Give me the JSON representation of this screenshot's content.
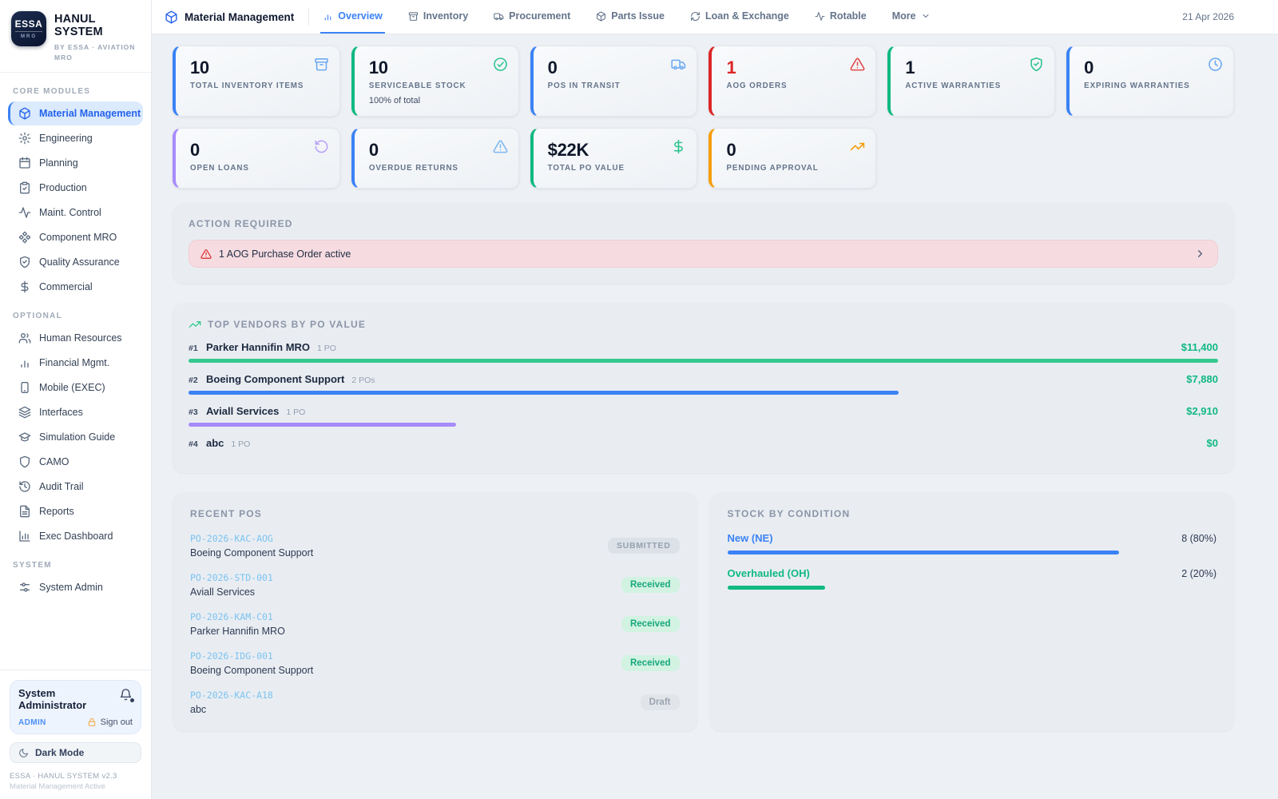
{
  "brand": {
    "logo_line1": "ESSA",
    "logo_line2": "MRO",
    "title": "HANUL SYSTEM",
    "subtitle": "BY ESSA · AVIATION MRO"
  },
  "sidebar": {
    "core_label": "CORE MODULES",
    "core_items": [
      {
        "label": "Material Management",
        "icon": "package",
        "state": "active"
      },
      {
        "label": "Engineering",
        "icon": "gear",
        "state": ""
      },
      {
        "label": "Planning",
        "icon": "calendar",
        "state": ""
      },
      {
        "label": "Production",
        "icon": "clipboard",
        "state": ""
      },
      {
        "label": "Maint. Control",
        "icon": "activity",
        "state": ""
      },
      {
        "label": "Component MRO",
        "icon": "component",
        "state": ""
      },
      {
        "label": "Quality Assurance",
        "icon": "shield-check",
        "state": ""
      },
      {
        "label": "Commercial",
        "icon": "dollar",
        "state": ""
      }
    ],
    "optional_label": "OPTIONAL",
    "optional_items": [
      {
        "label": "Human Resources",
        "icon": "users",
        "state": ""
      },
      {
        "label": "Financial Mgmt.",
        "icon": "chart-bars",
        "state": ""
      },
      {
        "label": "Mobile (EXEC)",
        "icon": "smartphone",
        "state": ""
      },
      {
        "label": "Interfaces",
        "icon": "layers",
        "state": ""
      },
      {
        "label": "Simulation Guide",
        "icon": "graduation-cap",
        "state": ""
      },
      {
        "label": "CAMO",
        "icon": "shield",
        "state": ""
      },
      {
        "label": "Audit Trail",
        "icon": "history",
        "state": ""
      },
      {
        "label": "Reports",
        "icon": "file-text",
        "state": ""
      },
      {
        "label": "Exec Dashboard",
        "icon": "chart-column",
        "state": ""
      }
    ],
    "system_label": "SYSTEM",
    "system_items": [
      {
        "label": "System Admin",
        "icon": "sliders",
        "state": ""
      }
    ],
    "user": {
      "name": "System Administrator",
      "role": "ADMIN",
      "signout_label": "Sign out",
      "bell_icon": "bell",
      "lock_icon": "lock"
    },
    "dark_mode": {
      "label": "Dark Mode",
      "icon": "moon"
    },
    "footer_line1": "ESSA · HANUL SYSTEM v2.3",
    "footer_line2": "Material Management Active"
  },
  "header": {
    "app_icon": "package",
    "app_name": "Material Management",
    "date": "21 Apr 2026",
    "tabs": [
      {
        "label": "Overview",
        "icon": "chart-bars",
        "trailing_icon": "",
        "state": "active"
      },
      {
        "label": "Inventory",
        "icon": "archive",
        "trailing_icon": "",
        "state": ""
      },
      {
        "label": "Procurement",
        "icon": "truck",
        "trailing_icon": "",
        "state": ""
      },
      {
        "label": "Parts Issue",
        "icon": "package",
        "trailing_icon": "",
        "state": ""
      },
      {
        "label": "Loan & Exchange",
        "icon": "refresh-cw",
        "trailing_icon": "",
        "state": ""
      },
      {
        "label": "Rotable",
        "icon": "activity",
        "trailing_icon": "",
        "state": ""
      },
      {
        "label": "More",
        "icon": "",
        "trailing_icon": "chevron-down",
        "state": ""
      }
    ]
  },
  "stats": [
    {
      "value": "10",
      "label": "TOTAL INVENTORY ITEMS",
      "sub": "",
      "accent": "#3b82f6",
      "value_color": "#0f172a",
      "icon": "archive",
      "icon_color": "#6caaf2"
    },
    {
      "value": "10",
      "label": "SERVICEABLE STOCK",
      "sub": "100% of total",
      "accent": "#10b981",
      "value_color": "#0f172a",
      "icon": "check-circle",
      "icon_color": "#2fc48e"
    },
    {
      "value": "0",
      "label": "POS IN TRANSIT",
      "sub": "",
      "accent": "#3b82f6",
      "value_color": "#0f172a",
      "icon": "truck",
      "icon_color": "#6caaf2"
    },
    {
      "value": "1",
      "label": "AOG ORDERS",
      "sub": "",
      "accent": "#dc2626",
      "value_color": "#dc2626",
      "icon": "alert-triangle",
      "icon_color": "#e14a4a"
    },
    {
      "value": "1",
      "label": "ACTIVE WARRANTIES",
      "sub": "",
      "accent": "#10b981",
      "value_color": "#0f172a",
      "icon": "shield-check",
      "icon_color": "#2fc48e"
    },
    {
      "value": "0",
      "label": "EXPIRING WARRANTIES",
      "sub": "",
      "accent": "#3b82f6",
      "value_color": "#0f172a",
      "icon": "clock",
      "icon_color": "#6caaf2"
    },
    {
      "value": "0",
      "label": "OPEN LOANS",
      "sub": "",
      "accent": "#a78bfa",
      "value_color": "#0f172a",
      "icon": "rotate-ccw",
      "icon_color": "#b9a2f8"
    },
    {
      "value": "0",
      "label": "OVERDUE RETURNS",
      "sub": "",
      "accent": "#3b82f6",
      "value_color": "#0f172a",
      "icon": "alert-triangle",
      "icon_color": "#7cb8f0"
    },
    {
      "value": "$22K",
      "label": "TOTAL PO VALUE",
      "sub": "",
      "accent": "#10b981",
      "value_color": "#0f172a",
      "icon": "dollar",
      "icon_color": "#2fc48e"
    },
    {
      "value": "0",
      "label": "PENDING APPROVAL",
      "sub": "",
      "accent": "#f59e0b",
      "value_color": "#0f172a",
      "icon": "trending-up",
      "icon_color": "#f59e0b"
    }
  ],
  "action_required": {
    "title": "ACTION REQUIRED",
    "alert_icon": "alert-triangle",
    "alert_text": "1 AOG Purchase Order active",
    "chevron_icon": "chevron-right"
  },
  "top_vendors": {
    "icon": "trending-up",
    "title": "TOP VENDORS BY PO VALUE",
    "vendors": [
      {
        "rank": "#1",
        "name": "Parker Hannifin MRO",
        "pos": "1 PO",
        "value": "$11,400",
        "bar_width": "100%",
        "bar_color": "#34c98f"
      },
      {
        "rank": "#2",
        "name": "Boeing Component Support",
        "pos": "2 POs",
        "value": "$7,880",
        "bar_width": "69%",
        "bar_color": "#3b82f6"
      },
      {
        "rank": "#3",
        "name": "Aviall Services",
        "pos": "1 PO",
        "value": "$2,910",
        "bar_width": "26%",
        "bar_color": "#a78bfa"
      },
      {
        "rank": "#4",
        "name": "abc",
        "pos": "1 PO",
        "value": "$0",
        "bar_width": "0%",
        "bar_color": "transparent"
      }
    ]
  },
  "recent_pos": {
    "title": "RECENT POS",
    "orders": [
      {
        "po": "PO-2026-KAC-AOG",
        "vendor": "Boeing Component Support",
        "status": "SUBMITTED",
        "badge": "badge-submitted"
      },
      {
        "po": "PO-2026-STD-001",
        "vendor": "Aviall Services",
        "status": "Received",
        "badge": "badge-received"
      },
      {
        "po": "PO-2026-KAM-C01",
        "vendor": "Parker Hannifin MRO",
        "status": "Received",
        "badge": "badge-received"
      },
      {
        "po": "PO-2026-IDG-001",
        "vendor": "Boeing Component Support",
        "status": "Received",
        "badge": "badge-received"
      },
      {
        "po": "PO-2026-KAC-A18",
        "vendor": "abc",
        "status": "Draft",
        "badge": "badge-draft"
      }
    ]
  },
  "stock_by_condition": {
    "title": "STOCK BY CONDITION",
    "rows": [
      {
        "label": "New (NE)",
        "label_color": "#3b82f6",
        "value": "8 (80%)",
        "bar_width": "80%",
        "bar_color": "#3b82f6"
      },
      {
        "label": "Overhauled (OH)",
        "label_color": "#10b981",
        "value": "2 (20%)",
        "bar_width": "20%",
        "bar_color": "#10b981"
      }
    ]
  }
}
